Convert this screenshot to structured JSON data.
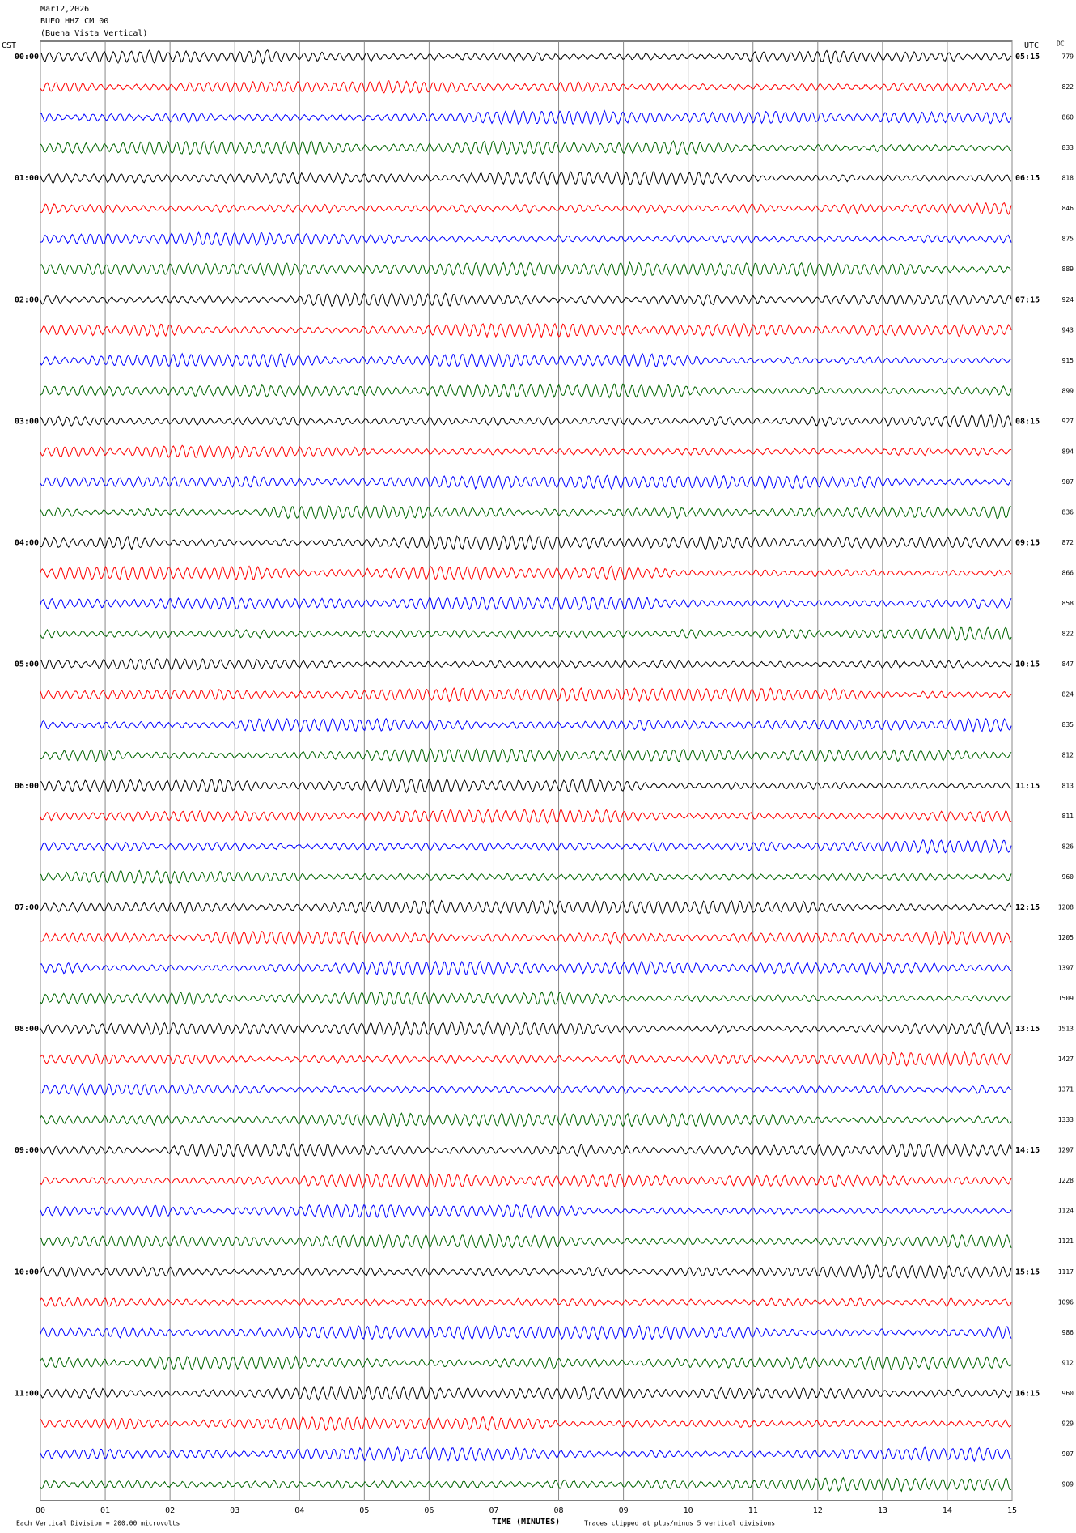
{
  "chart_data": {
    "type": "helicorder",
    "title_lines": [
      "Mar12,2026",
      "BUEO HHZ CM 00",
      "(Buena Vista Vertical)"
    ],
    "left_axis_label": "CST",
    "right_axis_label": "UTC",
    "dc_label": "DC",
    "xlabel": "TIME (MINUTES)",
    "scale_note": "Each Vertical Division =  200.00 microvolts",
    "clip_note": "Traces clipped at plus/minus 5 vertical divisions",
    "xlim": [
      0,
      15
    ],
    "xticks": [
      {
        "value": 0,
        "label": "00"
      },
      {
        "value": 1,
        "label": "01"
      },
      {
        "value": 2,
        "label": "02"
      },
      {
        "value": 3,
        "label": "03"
      },
      {
        "value": 4,
        "label": "04"
      },
      {
        "value": 5,
        "label": "05"
      },
      {
        "value": 6,
        "label": "06"
      },
      {
        "value": 7,
        "label": "07"
      },
      {
        "value": 8,
        "label": "08"
      },
      {
        "value": 9,
        "label": "09"
      },
      {
        "value": 10,
        "label": "10"
      },
      {
        "value": 11,
        "label": "11"
      },
      {
        "value": 12,
        "label": "12"
      },
      {
        "value": 13,
        "label": "13"
      },
      {
        "value": 14,
        "label": "14"
      },
      {
        "value": 15,
        "label": "15"
      }
    ],
    "trace_colors": [
      "#000000",
      "#ff0000",
      "#0000ff",
      "#006400"
    ],
    "cst_labels": [
      "00:00",
      "01:00",
      "02:00",
      "03:00",
      "04:00",
      "05:00",
      "06:00",
      "07:00",
      "08:00",
      "09:00",
      "10:00",
      "11:00"
    ],
    "utc_labels": [
      "05:15",
      "06:15",
      "07:15",
      "08:15",
      "09:15",
      "10:15",
      "11:15",
      "12:15",
      "13:15",
      "14:15",
      "15:15",
      "16:15"
    ],
    "dc": [
      779,
      822,
      860,
      833,
      818,
      846,
      875,
      889,
      924,
      943,
      915,
      899,
      927,
      894,
      907,
      836,
      872,
      866,
      858,
      822,
      847,
      824,
      835,
      812,
      813,
      811,
      826,
      960,
      1208,
      1205,
      1397,
      1509,
      1513,
      1427,
      1371,
      1333,
      1297,
      1228,
      1124,
      1121,
      1117,
      1096,
      986,
      912,
      960,
      929,
      907,
      909
    ]
  }
}
